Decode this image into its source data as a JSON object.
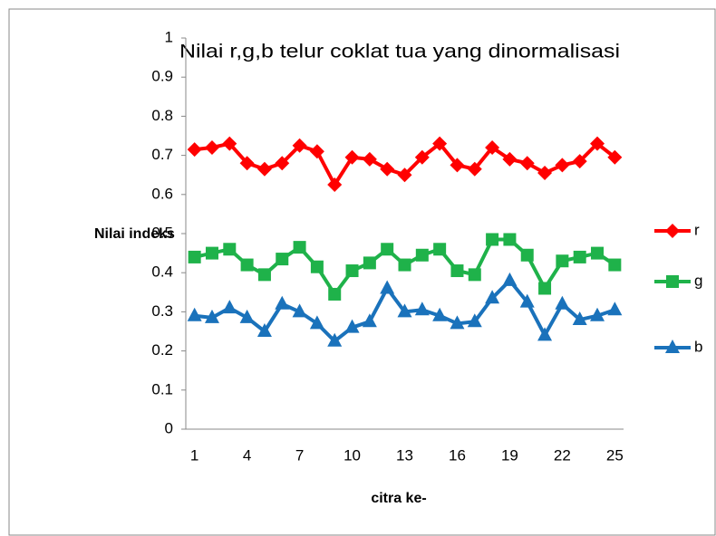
{
  "chart_data": {
    "type": "line",
    "title": "Nilai r,g,b telur coklat tua  yang dinormalisasi",
    "y_label": "Nilai indeks",
    "x_label": "citra ke-",
    "categories": [
      "1",
      null,
      null,
      "4",
      null,
      null,
      "7",
      null,
      null,
      "10",
      null,
      null,
      "13",
      null,
      null,
      "16",
      null,
      null,
      "19",
      null,
      null,
      "22",
      null,
      null,
      "25"
    ],
    "series": [
      {
        "name": "r",
        "color": "#ff0000",
        "marker": "diamond",
        "values": [
          0.715,
          0.72,
          0.73,
          0.68,
          0.665,
          0.68,
          0.725,
          0.71,
          0.625,
          0.695,
          0.69,
          0.665,
          0.65,
          0.695,
          0.73,
          0.675,
          0.665,
          0.72,
          0.69,
          0.68,
          0.655,
          0.675,
          0.685,
          0.73,
          0.695
        ]
      },
      {
        "name": "g",
        "color": "#1fb24a",
        "marker": "square",
        "values": [
          0.44,
          0.45,
          0.46,
          0.42,
          0.395,
          0.435,
          0.465,
          0.415,
          0.345,
          0.405,
          0.425,
          0.46,
          0.42,
          0.445,
          0.46,
          0.405,
          0.395,
          0.485,
          0.485,
          0.445,
          0.36,
          0.43,
          0.44,
          0.45,
          0.42
        ]
      },
      {
        "name": "b",
        "color": "#1a72bb",
        "marker": "triangle",
        "values": [
          0.29,
          0.285,
          0.31,
          0.285,
          0.25,
          0.32,
          0.3,
          0.27,
          0.225,
          0.26,
          0.275,
          0.36,
          0.3,
          0.305,
          0.29,
          0.27,
          0.275,
          0.335,
          0.38,
          0.325,
          0.24,
          0.32,
          0.28,
          0.29,
          0.305
        ]
      }
    ],
    "ylim": [
      0,
      1
    ],
    "yticks": [
      0,
      0.1,
      0.2,
      0.3,
      0.4,
      0.5,
      0.6,
      0.7,
      0.8,
      0.9,
      1
    ],
    "grid": false,
    "legend": "right"
  }
}
